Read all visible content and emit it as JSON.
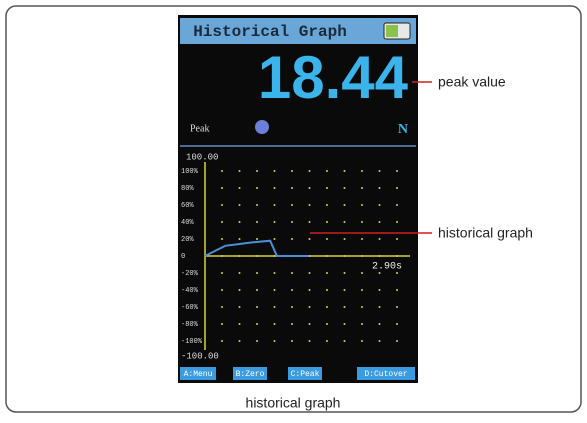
{
  "screen": {
    "header": {
      "title": "Historical Graph"
    },
    "peak": {
      "value": "18.44",
      "label": "Peak",
      "unit": "N"
    },
    "graph": {
      "top_label": "100.00",
      "bottom_label": "-100.00",
      "end_label": "2.90s",
      "y_labels": [
        "100%",
        "80%",
        "60%",
        "40%",
        "20%",
        "0",
        "-20%",
        "-40%",
        "-60%",
        "-80%",
        "-100%"
      ],
      "ylim": [
        -100,
        100
      ],
      "xlim": [
        0,
        2.9
      ],
      "times": [
        0,
        0.15,
        0.3,
        0.5,
        0.7,
        0.97,
        1.07,
        1.55
      ],
      "values": [
        0,
        6,
        12,
        14,
        16,
        18,
        0,
        0
      ]
    },
    "buttons": [
      "A:Menu",
      "B:Zero",
      "C:Peak",
      "D:Cutover"
    ]
  },
  "annotations": {
    "peak": "peak value",
    "graph": "historical graph"
  },
  "caption": "historical graph"
}
